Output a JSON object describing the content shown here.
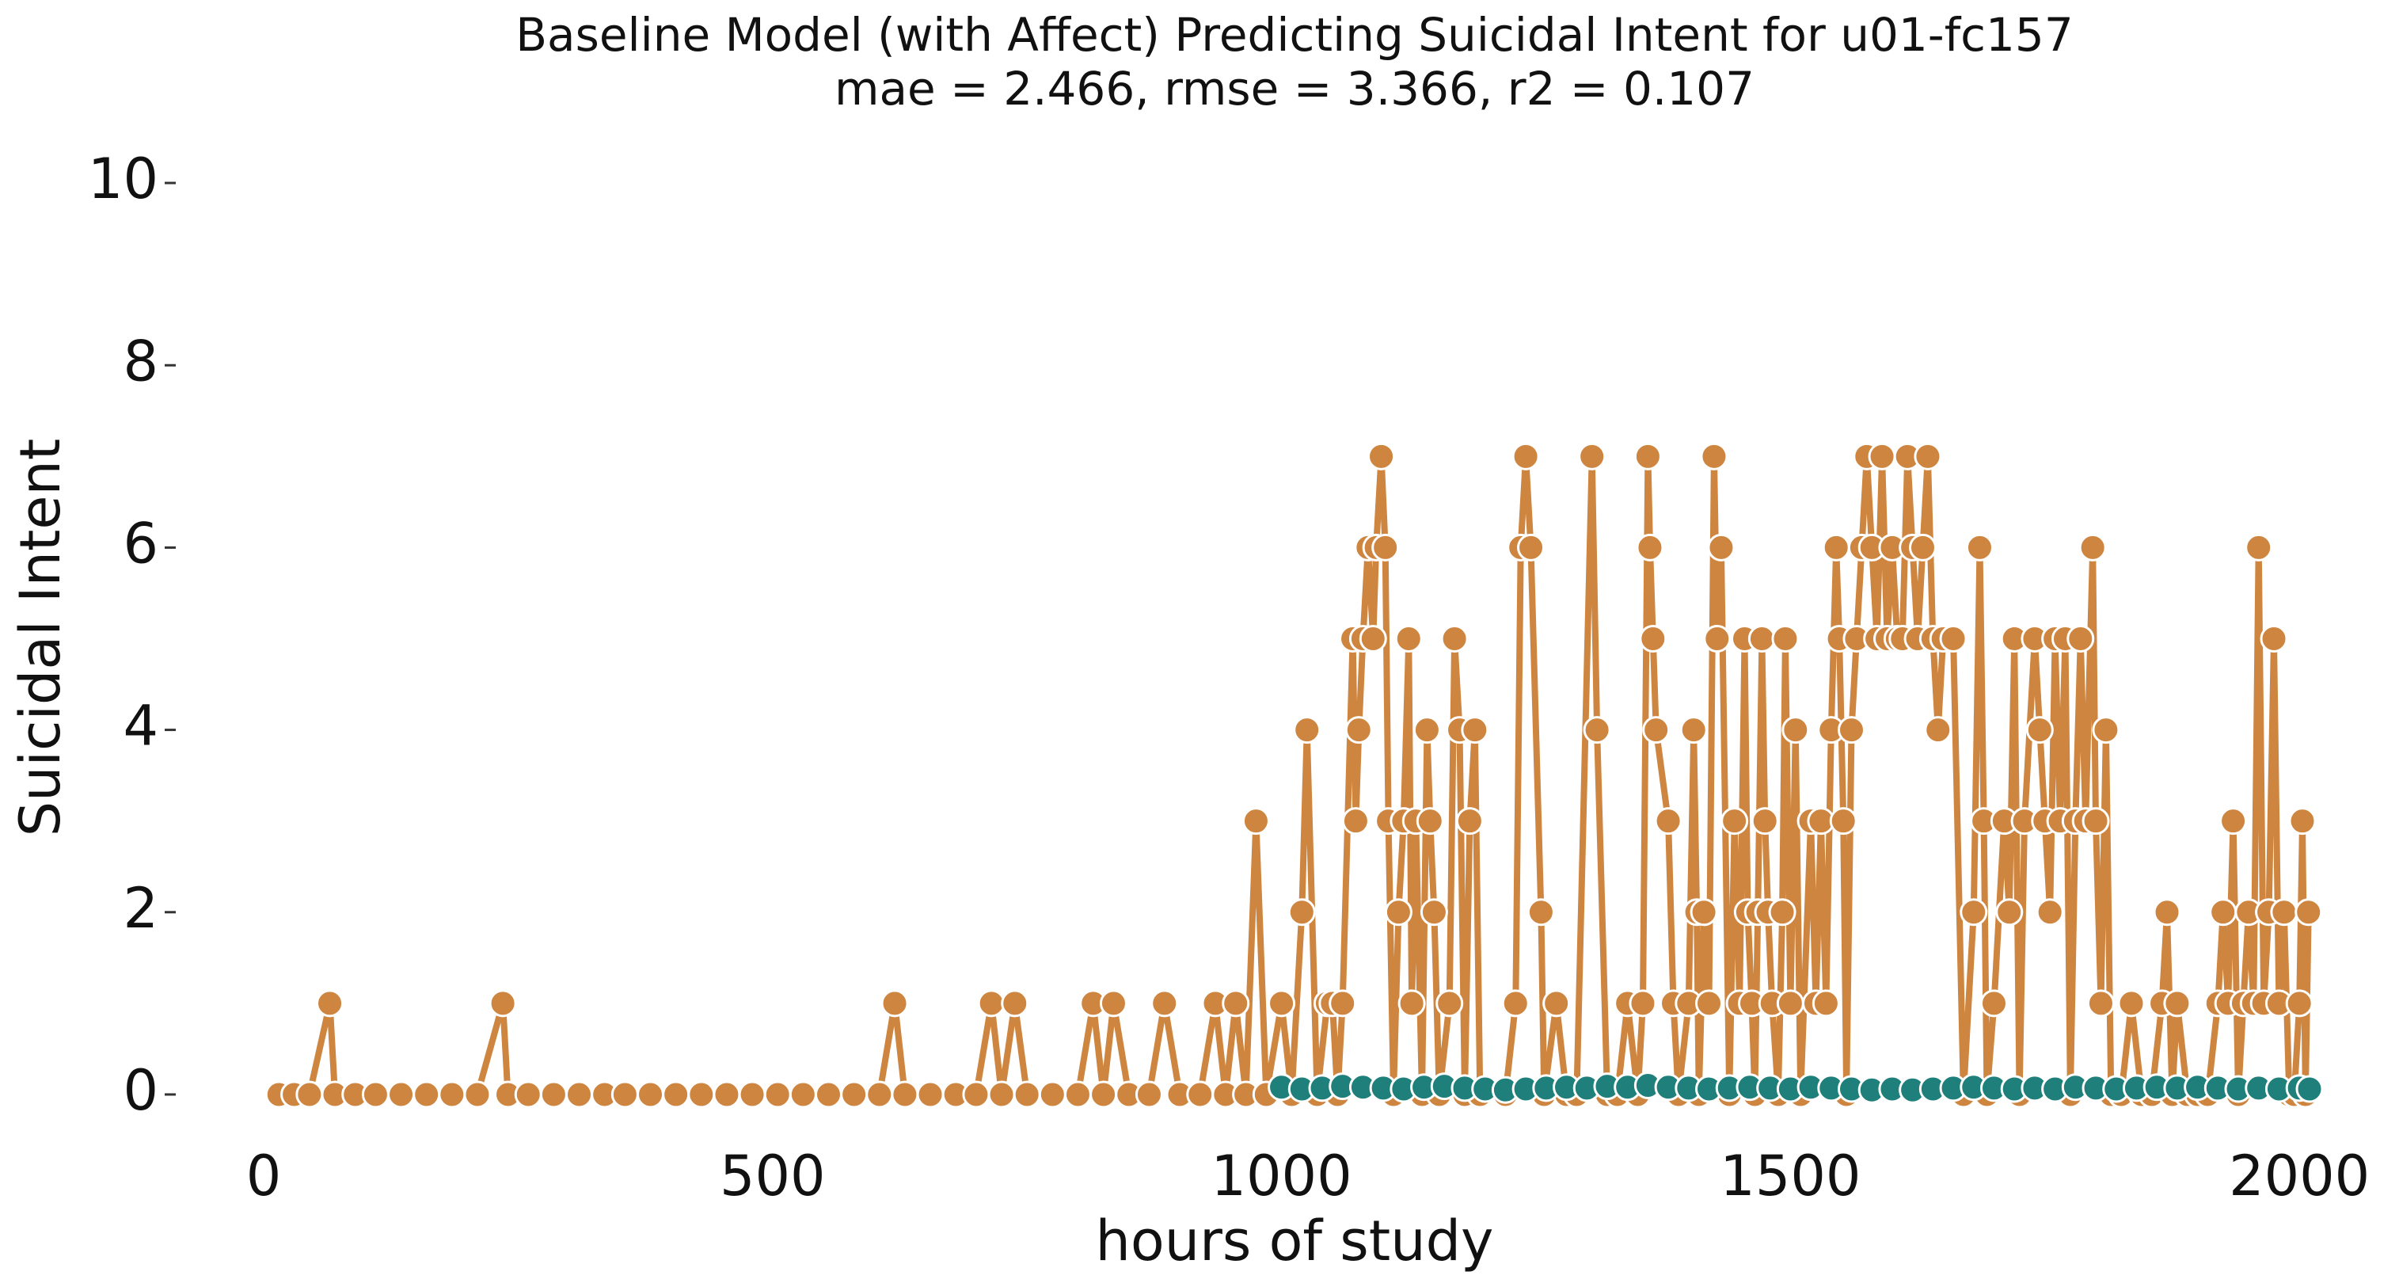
{
  "chart_data": {
    "type": "line",
    "title": "Baseline Model (with Affect) Predicting Suicidal Intent for u01-fc157",
    "subtitle": "mae = 2.466, rmse = 3.366, r2 = 0.107",
    "x_label": "hours of study",
    "y_label": "Suicidal Intent",
    "xlim": [
      -70,
      2080
    ],
    "ylim": [
      -0.4,
      10.4
    ],
    "xticks": [
      0,
      500,
      1000,
      1500,
      2000
    ],
    "yticks": [
      0,
      2,
      4,
      6,
      8,
      10
    ],
    "grid": false,
    "series": [
      {
        "color": "#cd853f",
        "x": [
          15,
          30,
          45,
          65,
          70,
          90,
          110,
          135,
          160,
          185,
          210,
          235,
          240,
          260,
          285,
          310,
          335,
          355,
          380,
          405,
          430,
          455,
          480,
          505,
          530,
          555,
          580,
          605,
          620,
          630,
          655,
          680,
          700,
          715,
          725,
          738,
          750,
          775,
          800,
          815,
          825,
          835,
          850,
          870,
          885,
          900,
          920,
          935,
          945,
          955,
          965,
          975,
          985,
          1000,
          1010,
          1020,
          1025,
          1035,
          1045,
          1050,
          1055,
          1060,
          1070,
          1073,
          1076,
          1080,
          1085,
          1090,
          1093,
          1098,
          1102,
          1105,
          1110,
          1115,
          1120,
          1125,
          1128,
          1132,
          1138,
          1143,
          1146,
          1150,
          1155,
          1165,
          1170,
          1175,
          1180,
          1185,
          1190,
          1195,
          1220,
          1230,
          1235,
          1240,
          1245,
          1255,
          1258,
          1270,
          1280,
          1290,
          1305,
          1310,
          1320,
          1330,
          1340,
          1350,
          1355,
          1360,
          1362,
          1365,
          1368,
          1380,
          1385,
          1390,
          1400,
          1405,
          1408,
          1410,
          1415,
          1420,
          1425,
          1428,
          1432,
          1440,
          1445,
          1450,
          1455,
          1458,
          1462,
          1465,
          1468,
          1472,
          1475,
          1478,
          1482,
          1488,
          1492,
          1495,
          1500,
          1505,
          1510,
          1520,
          1525,
          1530,
          1535,
          1540,
          1545,
          1548,
          1552,
          1555,
          1560,
          1565,
          1570,
          1575,
          1580,
          1585,
          1590,
          1595,
          1600,
          1605,
          1610,
          1615,
          1620,
          1625,
          1630,
          1635,
          1640,
          1645,
          1650,
          1660,
          1670,
          1680,
          1686,
          1690,
          1693,
          1700,
          1710,
          1715,
          1720,
          1725,
          1730,
          1740,
          1745,
          1750,
          1755,
          1760,
          1765,
          1770,
          1775,
          1780,
          1785,
          1790,
          1797,
          1800,
          1805,
          1810,
          1815,
          1825,
          1835,
          1845,
          1855,
          1865,
          1870,
          1875,
          1880,
          1890,
          1900,
          1910,
          1920,
          1925,
          1930,
          1935,
          1940,
          1945,
          1950,
          1955,
          1960,
          1965,
          1970,
          1975,
          1980,
          1985,
          1990,
          1995,
          2000,
          2003,
          2006,
          2009
        ],
        "values": [
          0,
          0,
          0,
          1,
          0,
          0,
          0,
          0,
          0,
          0,
          0,
          1,
          0,
          0,
          0,
          0,
          0,
          0,
          0,
          0,
          0,
          0,
          0,
          0,
          0,
          0,
          0,
          0,
          1,
          0,
          0,
          0,
          0,
          1,
          0,
          1,
          0,
          0,
          0,
          1,
          0,
          1,
          0,
          0,
          1,
          0,
          0,
          1,
          0,
          1,
          0,
          3,
          0,
          1,
          0,
          2,
          4,
          0,
          1,
          1,
          0,
          1,
          5,
          3,
          4,
          5,
          6,
          5,
          6,
          7,
          6,
          3,
          0,
          2,
          3,
          5,
          1,
          3,
          0,
          4,
          3,
          2,
          0,
          1,
          5,
          4,
          0,
          3,
          4,
          0,
          0,
          1,
          6,
          7,
          6,
          2,
          0,
          1,
          0,
          0,
          7,
          4,
          0,
          0,
          1,
          0,
          1,
          7,
          6,
          5,
          4,
          3,
          1,
          0,
          1,
          4,
          2,
          0,
          2,
          1,
          7,
          5,
          6,
          0,
          3,
          1,
          5,
          2,
          1,
          0,
          2,
          5,
          3,
          2,
          1,
          0,
          2,
          5,
          1,
          4,
          0,
          3,
          1,
          3,
          1,
          4,
          6,
          5,
          3,
          0,
          4,
          5,
          6,
          7,
          6,
          5,
          7,
          5,
          6,
          5,
          5,
          7,
          6,
          5,
          6,
          7,
          5,
          4,
          5,
          5,
          0,
          2,
          6,
          3,
          0,
          1,
          3,
          2,
          5,
          0,
          3,
          5,
          4,
          3,
          2,
          5,
          3,
          5,
          0,
          3,
          5,
          3,
          6,
          3,
          1,
          4,
          0,
          0,
          1,
          0,
          0,
          1,
          2,
          0,
          1,
          0,
          0,
          0,
          1,
          2,
          1,
          3,
          0,
          1,
          2,
          1,
          6,
          1,
          2,
          5,
          1,
          2,
          0,
          0,
          1,
          3,
          0,
          2
        ]
      },
      {
        "color": "#1f7f7a",
        "x": [
          1000,
          1020,
          1040,
          1060,
          1080,
          1100,
          1120,
          1140,
          1160,
          1180,
          1200,
          1220,
          1240,
          1260,
          1280,
          1300,
          1320,
          1340,
          1360,
          1380,
          1400,
          1420,
          1440,
          1460,
          1480,
          1500,
          1520,
          1540,
          1560,
          1580,
          1600,
          1620,
          1640,
          1660,
          1680,
          1700,
          1720,
          1740,
          1760,
          1780,
          1800,
          1820,
          1840,
          1860,
          1880,
          1900,
          1920,
          1940,
          1960,
          1980,
          2000,
          2010
        ],
        "values": [
          0.08,
          0.06,
          0.07,
          0.09,
          0.08,
          0.07,
          0.06,
          0.08,
          0.09,
          0.07,
          0.06,
          0.05,
          0.06,
          0.07,
          0.08,
          0.07,
          0.09,
          0.08,
          0.1,
          0.08,
          0.07,
          0.06,
          0.07,
          0.08,
          0.07,
          0.06,
          0.08,
          0.07,
          0.06,
          0.05,
          0.06,
          0.05,
          0.06,
          0.07,
          0.08,
          0.07,
          0.06,
          0.07,
          0.06,
          0.08,
          0.07,
          0.06,
          0.07,
          0.08,
          0.07,
          0.08,
          0.07,
          0.06,
          0.07,
          0.06,
          0.07,
          0.06
        ]
      }
    ]
  }
}
